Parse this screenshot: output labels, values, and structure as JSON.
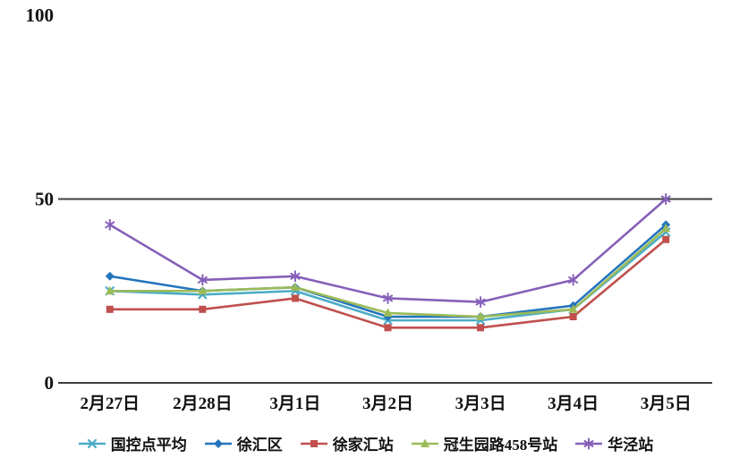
{
  "chart_data": {
    "type": "line",
    "title": "",
    "xlabel": "",
    "ylabel": "",
    "categories": [
      "2月27日",
      "2月28日",
      "3月1日",
      "3月2日",
      "3月3日",
      "3月4日",
      "3月5日"
    ],
    "series": [
      {
        "name": "国控点平均",
        "color": "#4BACC6",
        "marker": "x",
        "values": [
          25,
          24,
          25,
          17,
          17,
          20,
          41
        ]
      },
      {
        "name": "徐汇区",
        "color": "#2475BC",
        "marker": "diamond",
        "values": [
          29,
          25,
          26,
          18,
          18,
          21,
          43
        ]
      },
      {
        "name": "徐家汇站",
        "color": "#C0504D",
        "marker": "square",
        "values": [
          20,
          20,
          23,
          15,
          15,
          18,
          39
        ]
      },
      {
        "name": "冠生园路458号站",
        "color": "#9BBB59",
        "marker": "triangle",
        "values": [
          25,
          25,
          26,
          19,
          18,
          20,
          42
        ]
      },
      {
        "name": "华泾站",
        "color": "#8660B8",
        "marker": "asterisk",
        "values": [
          43,
          28,
          29,
          23,
          22,
          28,
          50
        ]
      }
    ],
    "ylim": [
      0,
      100
    ],
    "yticks": [
      0,
      50,
      100
    ],
    "gridline_ticks": [
      0,
      50
    ],
    "grid": "horizontal",
    "legend_position": "bottom",
    "axis_color": "#3f3f3f",
    "text_color": "#111111"
  }
}
